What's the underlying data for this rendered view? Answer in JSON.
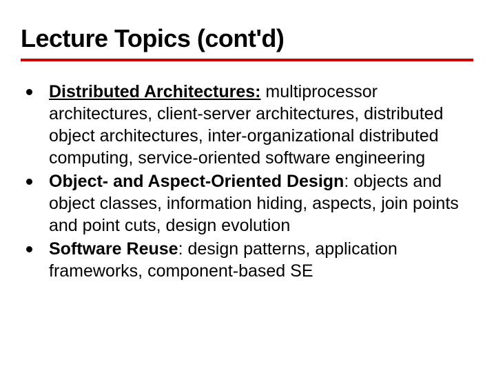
{
  "slide": {
    "title": "Lecture Topics (cont'd)",
    "title_fontsize": 36,
    "underline_color": "#cc0000",
    "underline_height": 4,
    "background_color": "#ffffff",
    "text_color": "#000000",
    "body_fontsize": 25,
    "bullets": [
      {
        "term": "Distributed Architectures:",
        "description": " multiprocessor architectures, client-server architectures, distributed object architectures, inter-organizational distributed computing, service-oriented software engineering"
      },
      {
        "term": "Object- and Aspect-Oriented Design",
        "description": ": objects and object classes, information hiding, aspects, join points and point cuts, design evolution"
      },
      {
        "term": "Software Reuse",
        "description": ": design patterns, application frameworks, component-based SE"
      }
    ]
  }
}
